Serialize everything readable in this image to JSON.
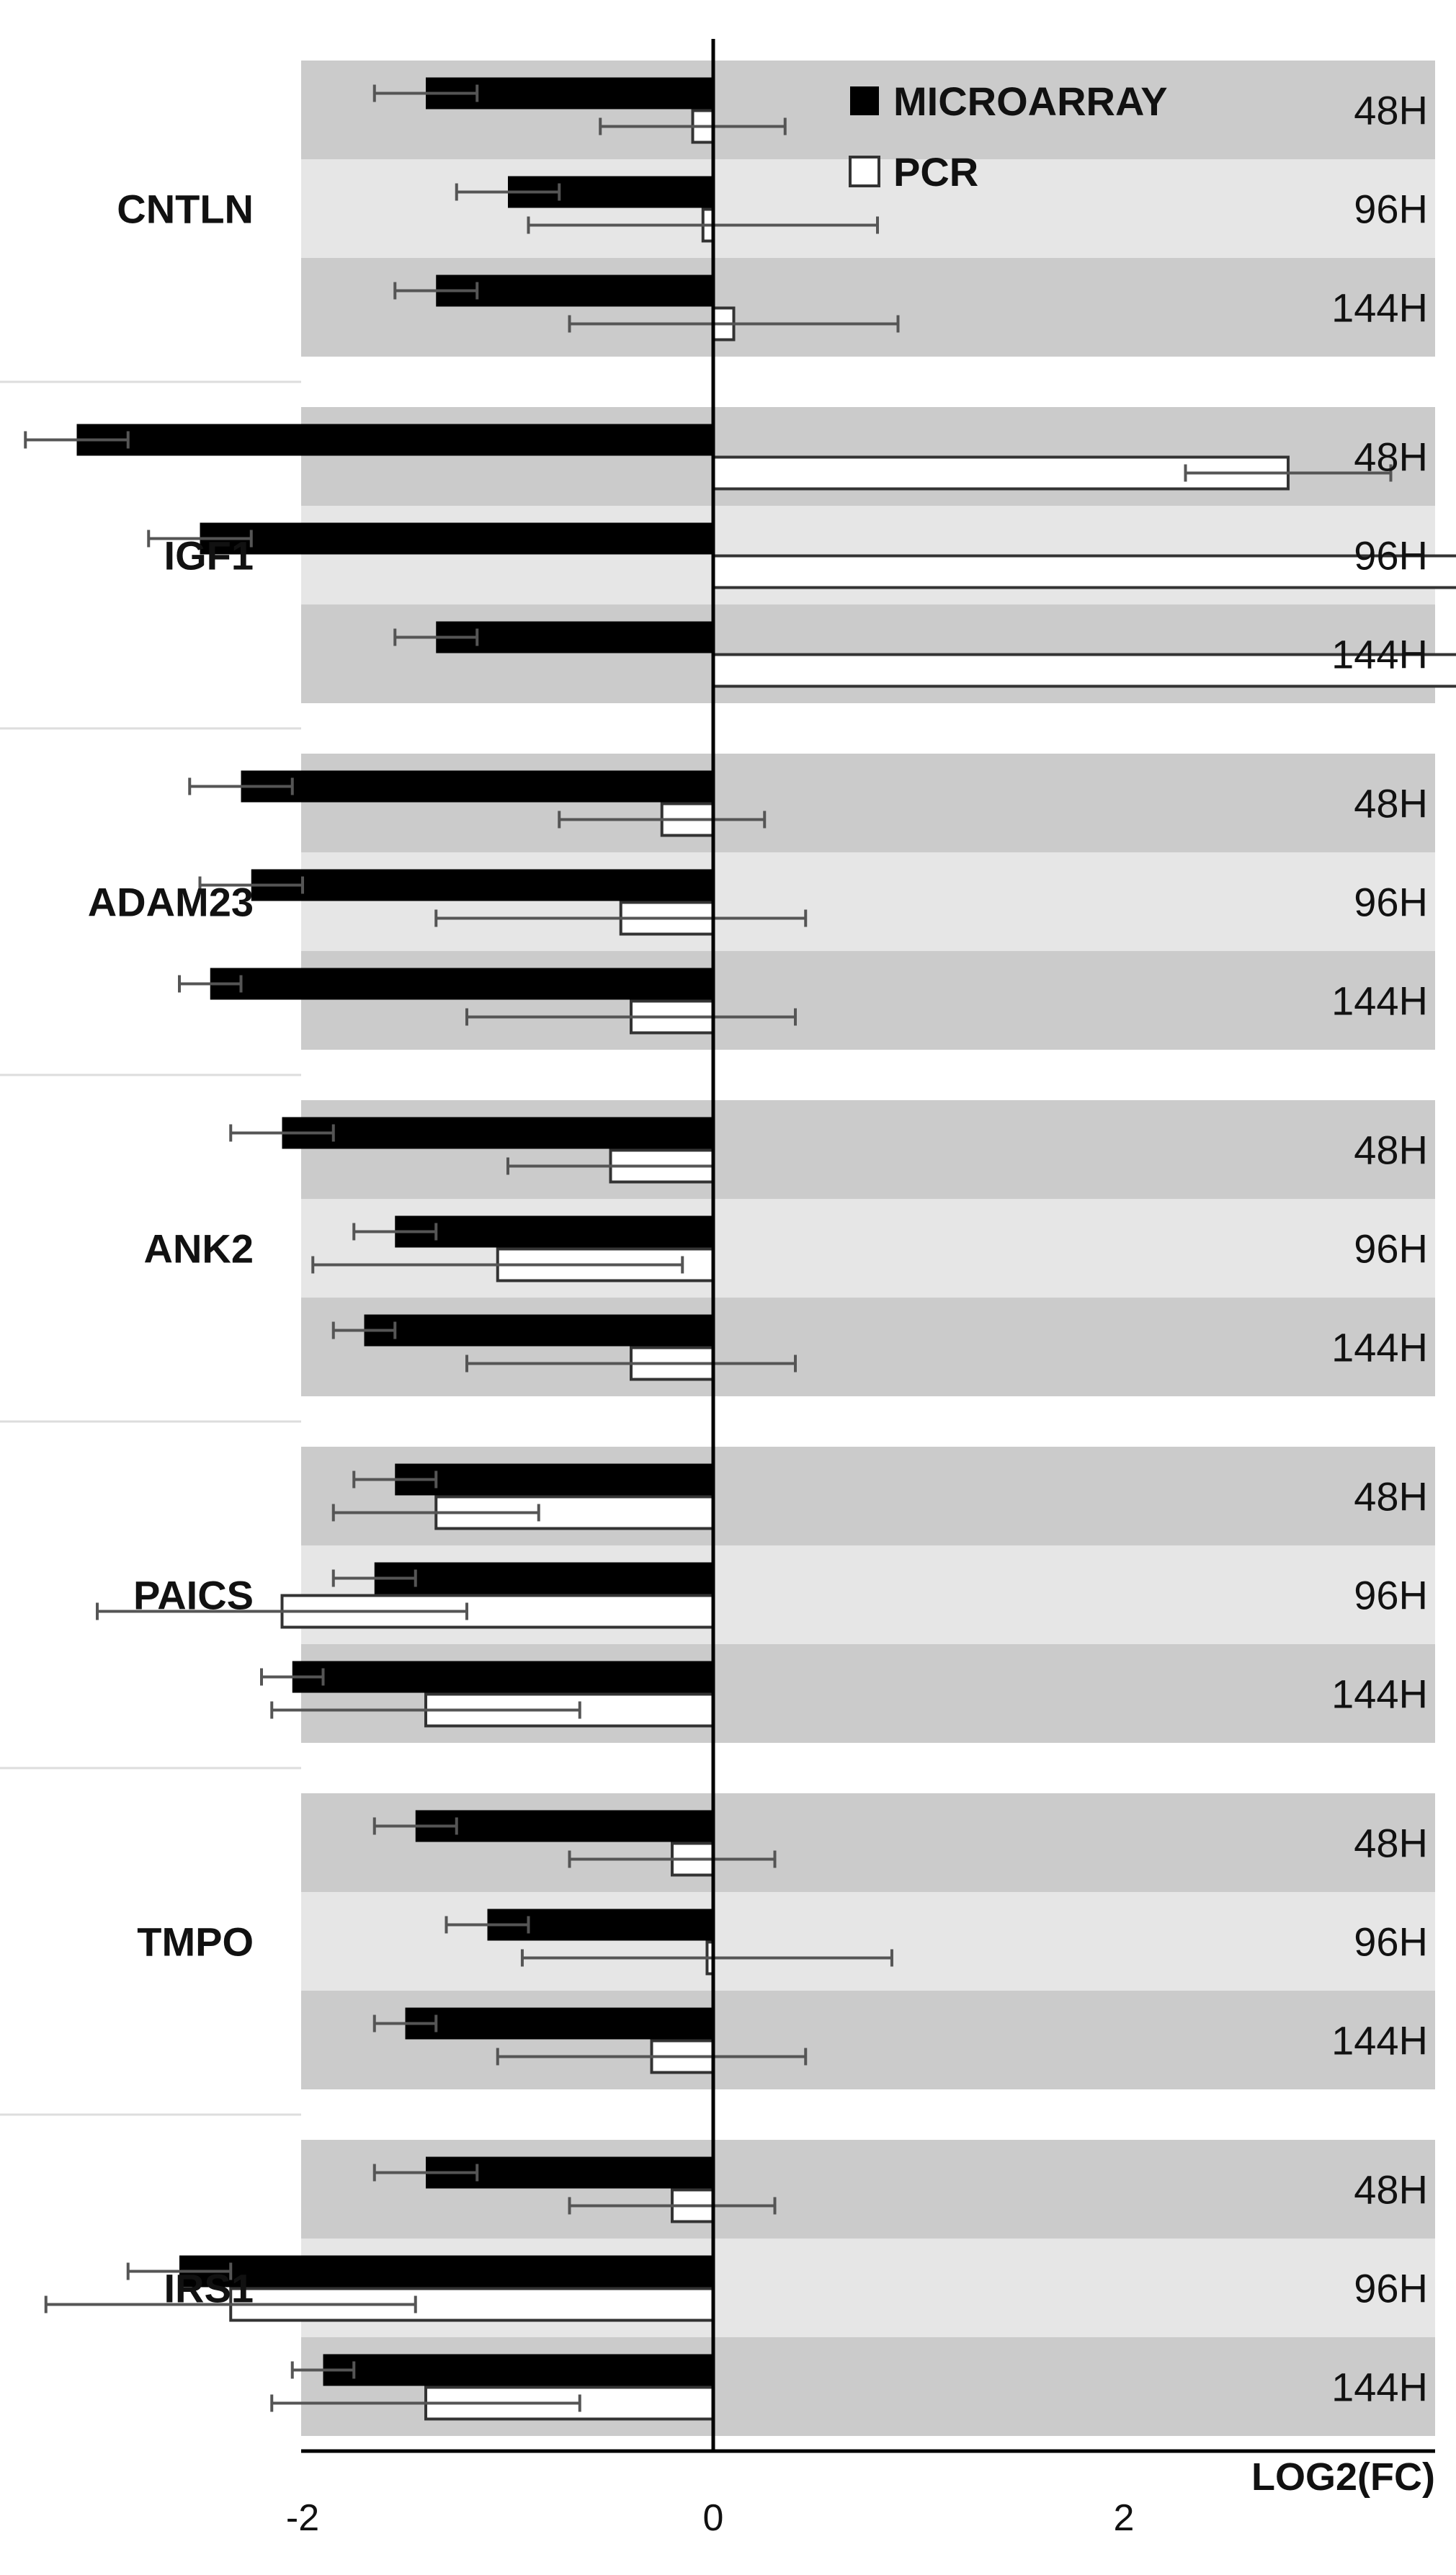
{
  "chart_data": {
    "type": "bar",
    "orientation": "horizontal",
    "xlabel": "LOG2(FC)",
    "xlim": [
      -4,
      6
    ],
    "x_ticks": [
      "-4",
      "-2",
      "0",
      "2",
      "4",
      "6"
    ],
    "legend": {
      "placement": "top-right",
      "entries": [
        {
          "name": "MICROARRAY",
          "style": "filled",
          "color": "#000000"
        },
        {
          "name": "PCR",
          "style": "outline",
          "color": "#ffffff"
        }
      ]
    },
    "band_colors": {
      "dark": "#cbcbcb",
      "light": "#e6e6e6"
    },
    "time_points": [
      "48H",
      "96H",
      "144H"
    ],
    "genes": [
      {
        "name": "CNTLN",
        "groups": [
          {
            "time": "48H",
            "microarray": -1.4,
            "microarray_err": 0.25,
            "pcr": -0.1,
            "pcr_err": 0.45
          },
          {
            "time": "96H",
            "microarray": -1.0,
            "microarray_err": 0.25,
            "pcr": -0.05,
            "pcr_err": 0.85
          },
          {
            "time": "144H",
            "microarray": -1.35,
            "microarray_err": 0.2,
            "pcr": 0.1,
            "pcr_err": 0.8
          }
        ]
      },
      {
        "name": "IGF1",
        "groups": [
          {
            "time": "48H",
            "microarray": -3.1,
            "microarray_err": 0.25,
            "pcr": 2.8,
            "pcr_err": 0.5
          },
          {
            "time": "96H",
            "microarray": -2.5,
            "microarray_err": 0.25,
            "pcr": 4.65,
            "pcr_err": 0.9
          },
          {
            "time": "144H",
            "microarray": -1.35,
            "microarray_err": 0.2,
            "pcr": 4.5,
            "pcr_err": 0.75
          }
        ]
      },
      {
        "name": "ADAM23",
        "groups": [
          {
            "time": "48H",
            "microarray": -2.3,
            "microarray_err": 0.25,
            "pcr": -0.25,
            "pcr_err": 0.5
          },
          {
            "time": "96H",
            "microarray": -2.25,
            "microarray_err": 0.25,
            "pcr": -0.45,
            "pcr_err": 0.9
          },
          {
            "time": "144H",
            "microarray": -2.45,
            "microarray_err": 0.15,
            "pcr": -0.4,
            "pcr_err": 0.8
          }
        ]
      },
      {
        "name": "ANK2",
        "groups": [
          {
            "time": "48H",
            "microarray": -2.1,
            "microarray_err": 0.25,
            "pcr": -0.5,
            "pcr_err": 0.5
          },
          {
            "time": "96H",
            "microarray": -1.55,
            "microarray_err": 0.2,
            "pcr": -1.05,
            "pcr_err": 0.9
          },
          {
            "time": "144H",
            "microarray": -1.7,
            "microarray_err": 0.15,
            "pcr": -0.4,
            "pcr_err": 0.8
          }
        ]
      },
      {
        "name": "PAICS",
        "groups": [
          {
            "time": "48H",
            "microarray": -1.55,
            "microarray_err": 0.2,
            "pcr": -1.35,
            "pcr_err": 0.5
          },
          {
            "time": "96H",
            "microarray": -1.65,
            "microarray_err": 0.2,
            "pcr": -2.1,
            "pcr_err": 0.9
          },
          {
            "time": "144H",
            "microarray": -2.05,
            "microarray_err": 0.15,
            "pcr": -1.4,
            "pcr_err": 0.75
          }
        ]
      },
      {
        "name": "TMPO",
        "groups": [
          {
            "time": "48H",
            "microarray": -1.45,
            "microarray_err": 0.2,
            "pcr": -0.2,
            "pcr_err": 0.5
          },
          {
            "time": "96H",
            "microarray": -1.1,
            "microarray_err": 0.2,
            "pcr": -0.03,
            "pcr_err": 0.9
          },
          {
            "time": "144H",
            "microarray": -1.5,
            "microarray_err": 0.15,
            "pcr": -0.3,
            "pcr_err": 0.75
          }
        ]
      },
      {
        "name": "IRS1",
        "groups": [
          {
            "time": "48H",
            "microarray": -1.4,
            "microarray_err": 0.25,
            "pcr": -0.2,
            "pcr_err": 0.5
          },
          {
            "time": "96H",
            "microarray": -2.6,
            "microarray_err": 0.25,
            "pcr": -2.35,
            "pcr_err": 0.9
          },
          {
            "time": "144H",
            "microarray": -1.9,
            "microarray_err": 0.15,
            "pcr": -1.4,
            "pcr_err": 0.75
          }
        ]
      }
    ]
  }
}
